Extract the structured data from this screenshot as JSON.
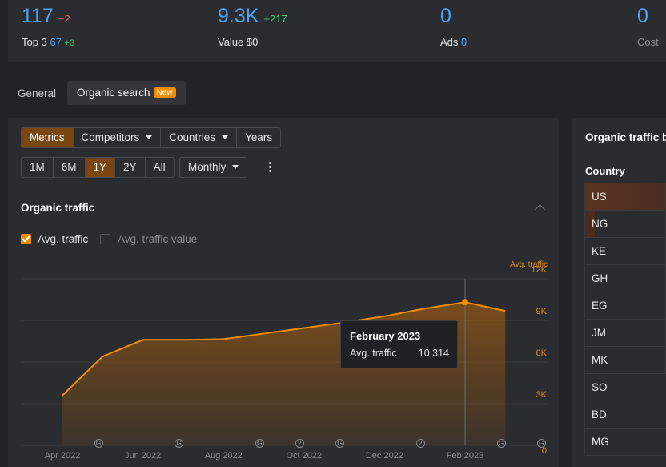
{
  "stats": {
    "keywords": {
      "value": "117",
      "delta": "−2",
      "sub_label": "Top 3",
      "sub_value": "67",
      "sub_delta": "+3"
    },
    "traffic": {
      "value": "9.3K",
      "delta": "+217",
      "sub_label": "Value",
      "sub_value": "$0"
    },
    "paid_keywords": {
      "value": "0",
      "sub_label": "Ads",
      "sub_value": "0"
    },
    "paid_traffic": {
      "value": "0",
      "sub_label": "Cost"
    }
  },
  "tabs": [
    {
      "label": "General"
    },
    {
      "label": "Organic search",
      "badge": "New"
    }
  ],
  "toolbar": {
    "view_group": [
      "Metrics",
      "Competitors",
      "Countries",
      "Years"
    ],
    "range_group": [
      "1M",
      "6M",
      "1Y",
      "2Y",
      "All"
    ],
    "active_view": "Metrics",
    "active_range": "1Y",
    "granularity": "Monthly"
  },
  "organic_traffic": {
    "title": "Organic traffic",
    "legend": [
      {
        "label": "Avg. traffic",
        "checked": true
      },
      {
        "label": "Avg. traffic value",
        "checked": false
      }
    ]
  },
  "chart_data": {
    "type": "area",
    "y_axis_title": "Avg. traffic",
    "x_ticks": [
      "Apr 2022",
      "Jun 2022",
      "Aug 2022",
      "Oct 2022",
      "Dec 2022",
      "Feb 2023"
    ],
    "y_ticks": [
      "0",
      "3K",
      "6K",
      "9K",
      "12K"
    ],
    "ylim": [
      0,
      13000
    ],
    "x": [
      "Apr 2022",
      "May 2022",
      "Jun 2022",
      "Jul 2022",
      "Aug 2022",
      "Sep 2022",
      "Oct 2022",
      "Nov 2022",
      "Dec 2022",
      "Jan 2023",
      "Feb 2023",
      "Mar 2023"
    ],
    "series": [
      {
        "name": "Avg. traffic",
        "color": "#f08c00",
        "values": [
          3600,
          6400,
          7600,
          7600,
          7650,
          8050,
          8450,
          8850,
          9300,
          9850,
          10314,
          9680
        ]
      }
    ],
    "annotations": [
      {
        "x": "Apr 2022",
        "label": "G"
      },
      {
        "x": "Jun 2022",
        "label": "G"
      },
      {
        "x": "Aug 2022",
        "label": "G"
      },
      {
        "x": "Sep 2022",
        "label": "2"
      },
      {
        "x": "Oct 2022",
        "label": "G"
      },
      {
        "x": "Dec 2022",
        "label": "2"
      },
      {
        "x": "Feb 2023",
        "label": "G"
      },
      {
        "x": "Mar 2023",
        "label": "G"
      }
    ],
    "tooltip": {
      "title": "February 2023",
      "label": "Avg. traffic",
      "value": "10,314"
    }
  },
  "right_panel": {
    "title": "Organic traffic by location",
    "column": "Country",
    "countries": [
      "US",
      "NG",
      "KE",
      "GH",
      "EG",
      "JM",
      "MK",
      "SO",
      "BD",
      "MG"
    ]
  },
  "colors": {
    "accent": "#f08c00",
    "link_blue": "#4ba3f5",
    "up_green": "#3ccf68",
    "down_red": "#f1595c"
  }
}
